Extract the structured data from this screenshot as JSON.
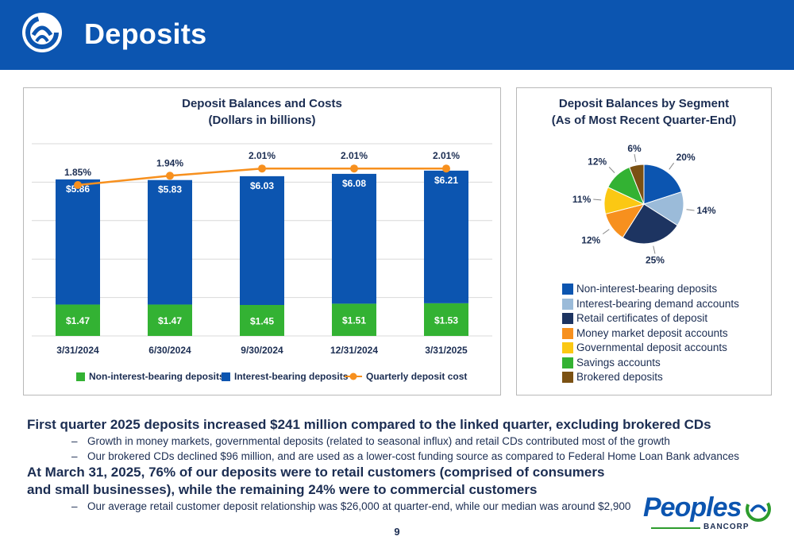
{
  "header": {
    "title": "Deposits"
  },
  "chart_data": [
    {
      "type": "bar",
      "subtype": "stacked-bar-with-line",
      "title": "Deposit Balances and Costs",
      "subtitle": "(Dollars in billions)",
      "categories": [
        "3/31/2024",
        "6/30/2024",
        "9/30/2024",
        "12/31/2024",
        "3/31/2025"
      ],
      "series": [
        {
          "name": "Non-interest-bearing deposits",
          "kind": "bar",
          "color": "#33b233",
          "values": [
            1.47,
            1.47,
            1.45,
            1.51,
            1.53
          ],
          "labels": [
            "$1.47",
            "$1.47",
            "$1.45",
            "$1.51",
            "$1.53"
          ]
        },
        {
          "name": "Interest-bearing deposits",
          "kind": "bar",
          "color": "#0c55b0",
          "values": [
            5.86,
            5.83,
            6.03,
            6.08,
            6.21
          ],
          "labels": [
            "$5.86",
            "$5.83",
            "$6.03",
            "$6.08",
            "$6.21"
          ]
        },
        {
          "name": "Quarterly deposit cost",
          "kind": "line",
          "color": "#f7901e",
          "values": [
            1.85,
            1.94,
            2.01,
            2.01,
            2.01
          ],
          "labels": [
            "1.85%",
            "1.94%",
            "2.01%",
            "2.01%",
            "2.01%"
          ]
        }
      ],
      "ylim": [
        0,
        9
      ],
      "grid": true,
      "legend": "bottom"
    },
    {
      "type": "pie",
      "title": "Deposit Balances by Segment",
      "subtitle": "(As of Most Recent Quarter-End)",
      "slices": [
        {
          "name": "Non-interest-bearing deposits",
          "value": 20,
          "label": "20%",
          "color": "#0c55b0"
        },
        {
          "name": "Interest-bearing demand accounts",
          "value": 14,
          "label": "14%",
          "color": "#9bbbd9"
        },
        {
          "name": "Retail certificates of deposit",
          "value": 25,
          "label": "25%",
          "color": "#1d3461"
        },
        {
          "name": "Money market deposit accounts",
          "value": 12,
          "label": "12%",
          "color": "#f7901e"
        },
        {
          "name": "Governmental deposit accounts",
          "value": 11,
          "label": "11%",
          "color": "#fbc813"
        },
        {
          "name": "Savings accounts",
          "value": 12,
          "label": "12%",
          "color": "#33b233"
        },
        {
          "name": "Brokered deposits",
          "value": 6,
          "label": "6%",
          "color": "#7b5113"
        }
      ],
      "legend": "bottom"
    }
  ],
  "body": {
    "heading1": "First quarter 2025 deposits increased $241 million compared to the linked quarter, excluding brokered CDs",
    "bullets1": [
      "Growth in money markets, governmental deposits (related to seasonal influx) and retail CDs contributed most of the growth",
      "Our brokered CDs declined $96 million, and are used as a lower-cost funding source as compared to Federal Home Loan Bank advances"
    ],
    "heading2_line1": "At March 31, 2025, 76% of our deposits were to retail customers (comprised of consumers",
    "heading2_line2": "and small businesses), while the remaining 24% were to commercial customers",
    "bullets2": [
      "Our average retail customer deposit relationship was $26,000 at quarter-end, while our median was around $2,900"
    ],
    "dash": "–"
  },
  "page_number": "9",
  "brand": {
    "name": "Peoples",
    "sub": "BANCORP"
  }
}
